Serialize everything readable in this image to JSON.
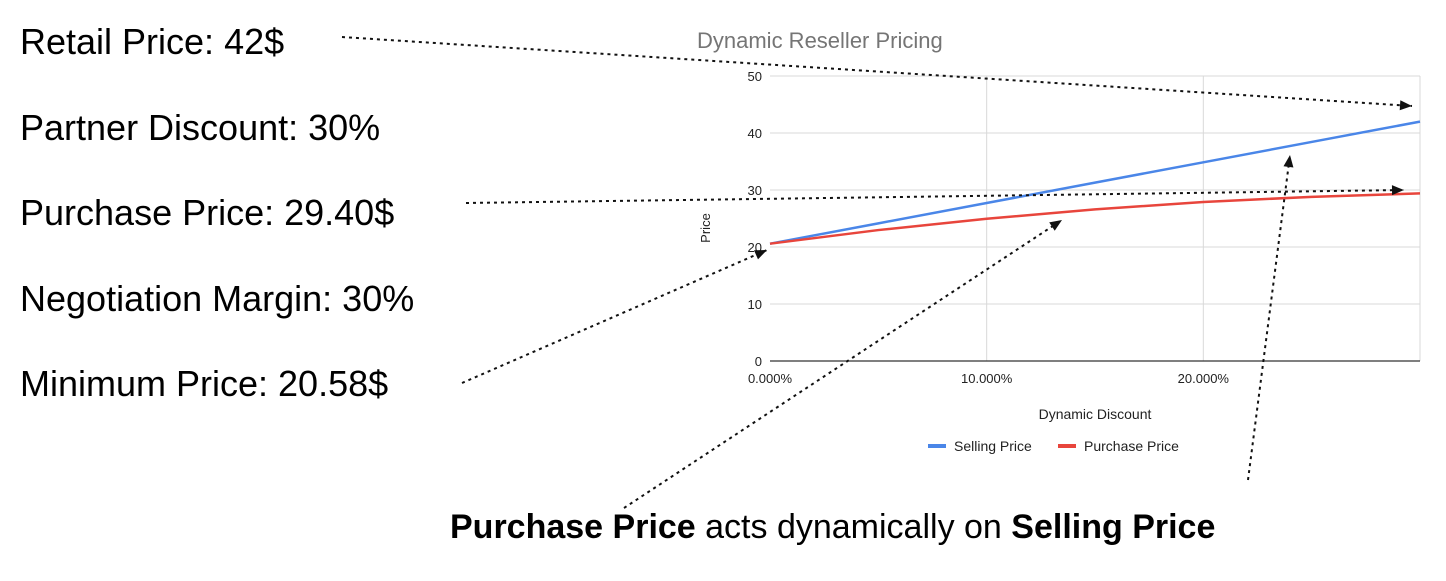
{
  "facts": [
    {
      "label": "Retail Price: 42$"
    },
    {
      "label": "Partner Discount: 30%"
    },
    {
      "label": "Purchase Price: 29.40$"
    },
    {
      "label": "Negotiation Margin: 30%"
    },
    {
      "label": "Minimum Price: 20.58$"
    }
  ],
  "caption": {
    "part1": "Purchase Price",
    "part2": " acts dynamically on ",
    "part3": "Selling Price"
  },
  "colors": {
    "selling": "#4a86e8",
    "purchase": "#e8453c",
    "grid": "#d9d9d9",
    "title": "#757575"
  },
  "chart_data": {
    "type": "line",
    "title": "Dynamic Reseller Pricing",
    "xlabel": "Dynamic Discount",
    "ylabel": "Price",
    "xlim": [
      0,
      30
    ],
    "ylim": [
      0,
      50
    ],
    "x_ticks": [
      0,
      10,
      20
    ],
    "x_tick_labels": [
      "0.000%",
      "10.000%",
      "20.000%"
    ],
    "y_ticks": [
      0,
      10,
      20,
      30,
      40,
      50
    ],
    "y_tick_labels": [
      "0",
      "10",
      "20",
      "30",
      "40",
      "50"
    ],
    "grid": true,
    "legend": "bottom",
    "series": [
      {
        "name": "Selling Price",
        "x": [
          0,
          5,
          10,
          15,
          20,
          25,
          30
        ],
        "values": [
          20.58,
          24.15,
          27.72,
          31.29,
          34.86,
          38.43,
          42.0
        ]
      },
      {
        "name": "Purchase Price",
        "x": [
          0,
          5,
          10,
          15,
          20,
          25,
          30
        ],
        "values": [
          20.58,
          22.97,
          24.95,
          26.6,
          27.9,
          28.8,
          29.4
        ]
      }
    ]
  }
}
